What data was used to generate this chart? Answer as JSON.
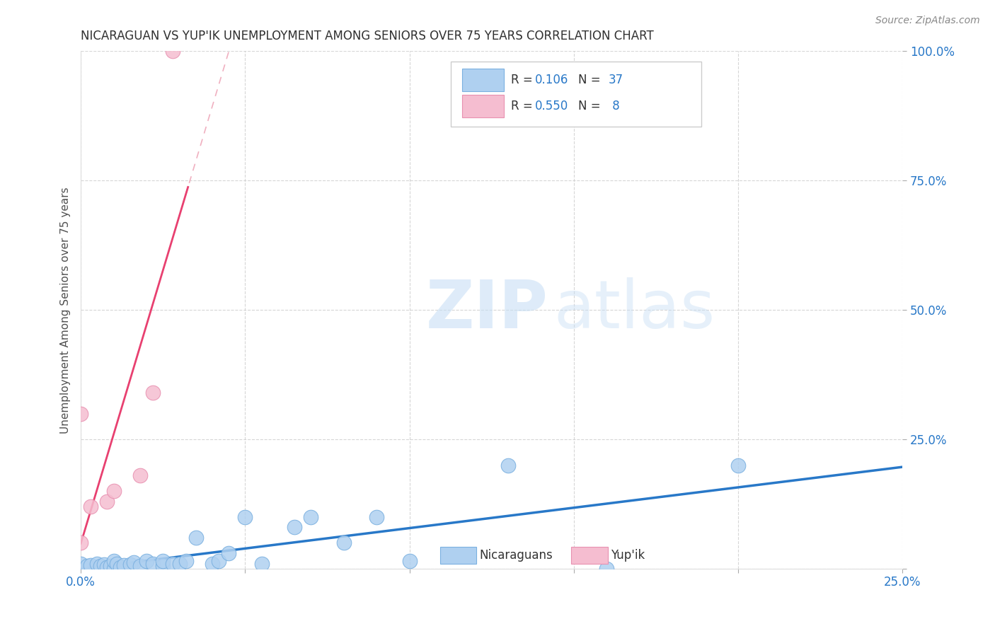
{
  "title": "NICARAGUAN VS YUP'IK UNEMPLOYMENT AMONG SENIORS OVER 75 YEARS CORRELATION CHART",
  "source_text": "Source: ZipAtlas.com",
  "ylabel": "Unemployment Among Seniors over 75 years",
  "xlim": [
    0.0,
    0.25
  ],
  "ylim": [
    0.0,
    1.0
  ],
  "xticks": [
    0.0,
    0.05,
    0.1,
    0.15,
    0.2,
    0.25
  ],
  "xtick_labels": [
    "0.0%",
    "",
    "",
    "",
    "",
    "25.0%"
  ],
  "yticks": [
    0.0,
    0.25,
    0.5,
    0.75,
    1.0
  ],
  "ytick_labels": [
    "",
    "25.0%",
    "50.0%",
    "75.0%",
    "100.0%"
  ],
  "nicaraguan_x": [
    0.0,
    0.002,
    0.003,
    0.005,
    0.006,
    0.007,
    0.008,
    0.009,
    0.01,
    0.01,
    0.011,
    0.012,
    0.013,
    0.015,
    0.016,
    0.018,
    0.02,
    0.022,
    0.025,
    0.025,
    0.028,
    0.03,
    0.032,
    0.035,
    0.04,
    0.042,
    0.045,
    0.05,
    0.055,
    0.065,
    0.07,
    0.08,
    0.09,
    0.1,
    0.13,
    0.16,
    0.2
  ],
  "nicaraguan_y": [
    0.01,
    0.005,
    0.007,
    0.01,
    0.005,
    0.008,
    0.003,
    0.006,
    0.0,
    0.015,
    0.01,
    0.003,
    0.007,
    0.008,
    0.012,
    0.005,
    0.015,
    0.01,
    0.005,
    0.015,
    0.01,
    0.01,
    0.015,
    0.06,
    0.01,
    0.015,
    0.03,
    0.1,
    0.01,
    0.08,
    0.1,
    0.05,
    0.1,
    0.015,
    0.2,
    0.0,
    0.2
  ],
  "yupik_x": [
    0.0,
    0.0,
    0.003,
    0.008,
    0.01,
    0.018,
    0.022,
    0.028
  ],
  "yupik_y": [
    0.3,
    0.05,
    0.12,
    0.13,
    0.15,
    0.18,
    0.34,
    1.0
  ],
  "blue_scatter_color": "#afd0f0",
  "pink_scatter_color": "#f5bdd0",
  "blue_edge_color": "#7ab0e0",
  "pink_edge_color": "#e890b0",
  "blue_line_color": "#2878c8",
  "pink_line_color": "#e84070",
  "pink_dash_color": "#f0b0c0",
  "R_nicaraguan": 0.106,
  "N_nicaraguan": 37,
  "R_yupik": 0.55,
  "N_yupik": 8,
  "legend_label_nicaraguan": "Nicaraguans",
  "legend_label_yupik": "Yup'ik",
  "watermark_zip": "ZIP",
  "watermark_atlas": "atlas",
  "title_color": "#303030",
  "axis_label_color": "#505050",
  "tick_color": "#2878c8",
  "grid_color": "#cccccc",
  "background_color": "#ffffff"
}
